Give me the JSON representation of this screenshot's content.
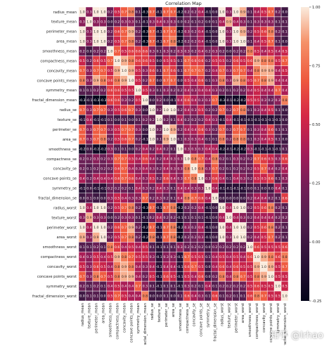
{
  "chart_data": {
    "type": "heatmap",
    "title": "Correlation Map",
    "labels": [
      "radius_mean",
      "texture_mean",
      "perimeter_mean",
      "area_mean",
      "smoothness_mean",
      "compactness_mean",
      "concavity_mean",
      "concave points_mean",
      "symmetry_mean",
      "fractal_dimension_mean",
      "radius_se",
      "texture_se",
      "perimeter_se",
      "area_se",
      "smoothness_se",
      "compactness_se",
      "concavity_se",
      "concave points_se",
      "symmetry_se",
      "fractal_dimension_se",
      "radius_worst",
      "texture_worst",
      "perimeter_worst",
      "area_worst",
      "smoothness_worst",
      "compactness_worst",
      "concavity_worst",
      "concave points_worst",
      "symmetry_worst",
      "fractal_dimension_worst"
    ],
    "matrix": [
      [
        1.0,
        0.3,
        1.0,
        1.0,
        0.2,
        0.5,
        0.7,
        0.8,
        0.1,
        -0.3,
        0.7,
        -0.1,
        0.7,
        0.7,
        -0.2,
        0.2,
        0.2,
        0.4,
        -0.1,
        -0.0,
        1.0,
        0.3,
        1.0,
        0.9,
        0.1,
        0.4,
        0.5,
        0.7,
        0.2,
        0.0
      ],
      [
        0.3,
        1.0,
        0.3,
        0.3,
        -0.0,
        0.2,
        0.3,
        0.3,
        0.1,
        -0.1,
        0.3,
        0.4,
        0.3,
        0.3,
        0.0,
        0.2,
        0.1,
        0.2,
        0.0,
        0.1,
        0.4,
        0.9,
        0.4,
        0.3,
        0.1,
        0.3,
        0.3,
        0.3,
        0.1,
        0.1
      ],
      [
        1.0,
        0.3,
        1.0,
        1.0,
        0.2,
        0.6,
        0.7,
        0.9,
        0.2,
        -0.3,
        0.7,
        -0.1,
        0.7,
        0.7,
        -0.2,
        0.3,
        0.2,
        0.4,
        -0.1,
        -0.0,
        1.0,
        0.3,
        1.0,
        0.9,
        0.2,
        0.5,
        0.6,
        0.8,
        0.2,
        0.1
      ],
      [
        1.0,
        0.3,
        1.0,
        1.0,
        0.2,
        0.5,
        0.7,
        0.8,
        0.2,
        -0.3,
        0.7,
        -0.1,
        0.7,
        0.8,
        -0.2,
        0.2,
        0.2,
        0.4,
        -0.1,
        -0.0,
        1.0,
        0.3,
        1.0,
        1.0,
        0.1,
        0.4,
        0.5,
        0.7,
        0.1,
        0.0
      ],
      [
        0.2,
        -0.0,
        0.2,
        0.2,
        1.0,
        0.7,
        0.5,
        0.6,
        0.6,
        0.6,
        0.3,
        0.1,
        0.3,
        0.2,
        0.3,
        0.3,
        0.2,
        0.4,
        0.2,
        0.3,
        0.2,
        0.0,
        0.2,
        0.2,
        0.8,
        0.5,
        0.4,
        0.5,
        0.4,
        0.5
      ],
      [
        0.5,
        0.2,
        0.6,
        0.5,
        0.7,
        1.0,
        0.9,
        0.8,
        0.6,
        0.6,
        0.5,
        0.0,
        0.5,
        0.5,
        0.1,
        0.7,
        0.6,
        0.6,
        0.2,
        0.5,
        0.5,
        0.2,
        0.6,
        0.5,
        0.6,
        0.9,
        0.8,
        0.8,
        0.5,
        0.7
      ],
      [
        0.7,
        0.3,
        0.7,
        0.7,
        0.5,
        0.9,
        1.0,
        0.9,
        0.5,
        0.3,
        0.6,
        0.1,
        0.7,
        0.6,
        0.1,
        0.7,
        0.7,
        0.7,
        0.2,
        0.4,
        0.7,
        0.3,
        0.7,
        0.7,
        0.4,
        0.8,
        0.9,
        0.9,
        0.4,
        0.5
      ],
      [
        0.8,
        0.3,
        0.9,
        0.8,
        0.6,
        0.8,
        0.9,
        1.0,
        0.5,
        0.2,
        0.7,
        0.0,
        0.7,
        0.7,
        0.0,
        0.5,
        0.4,
        0.6,
        0.1,
        0.3,
        0.8,
        0.3,
        0.9,
        0.8,
        0.5,
        0.7,
        0.8,
        0.9,
        0.4,
        0.4
      ],
      [
        0.1,
        0.1,
        0.2,
        0.2,
        0.6,
        0.6,
        0.5,
        0.5,
        1.0,
        0.5,
        0.3,
        0.1,
        0.3,
        0.2,
        0.2,
        0.4,
        0.3,
        0.4,
        0.4,
        0.3,
        0.2,
        0.1,
        0.2,
        0.2,
        0.4,
        0.5,
        0.4,
        0.4,
        0.7,
        0.4
      ],
      [
        -0.3,
        -0.1,
        -0.3,
        -0.3,
        0.6,
        0.6,
        0.3,
        0.2,
        0.5,
        1.0,
        0.0,
        0.2,
        0.0,
        -0.1,
        0.4,
        0.6,
        0.4,
        0.3,
        0.3,
        0.7,
        -0.3,
        -0.1,
        -0.2,
        -0.2,
        0.5,
        0.5,
        0.3,
        0.2,
        0.3,
        0.8
      ],
      [
        0.7,
        0.3,
        0.7,
        0.7,
        0.3,
        0.5,
        0.6,
        0.7,
        0.3,
        0.0,
        1.0,
        0.2,
        1.0,
        1.0,
        0.2,
        0.4,
        0.3,
        0.5,
        0.2,
        0.2,
        0.7,
        0.2,
        0.7,
        0.8,
        0.1,
        0.3,
        0.4,
        0.5,
        0.1,
        0.0
      ],
      [
        -0.1,
        0.4,
        -0.1,
        -0.1,
        0.1,
        0.0,
        0.1,
        0.0,
        0.1,
        0.2,
        0.2,
        1.0,
        0.2,
        0.1,
        0.4,
        0.2,
        0.2,
        0.2,
        0.4,
        0.3,
        -0.1,
        0.4,
        -0.1,
        -0.1,
        -0.1,
        -0.1,
        -0.1,
        -0.1,
        -0.1,
        -0.0
      ],
      [
        0.7,
        0.3,
        0.7,
        0.7,
        0.3,
        0.5,
        0.7,
        0.7,
        0.3,
        0.0,
        1.0,
        0.2,
        1.0,
        0.9,
        0.2,
        0.4,
        0.4,
        0.6,
        0.3,
        0.2,
        0.7,
        0.2,
        0.7,
        0.7,
        0.1,
        0.3,
        0.4,
        0.6,
        0.1,
        0.1
      ],
      [
        0.7,
        0.3,
        0.7,
        0.8,
        0.2,
        0.5,
        0.6,
        0.7,
        0.2,
        -0.1,
        1.0,
        0.1,
        0.9,
        1.0,
        0.1,
        0.3,
        0.3,
        0.4,
        0.1,
        0.1,
        0.8,
        0.2,
        0.8,
        0.8,
        0.1,
        0.3,
        0.4,
        0.5,
        0.1,
        0.0
      ],
      [
        -0.2,
        0.0,
        -0.2,
        -0.2,
        0.3,
        0.1,
        0.1,
        0.0,
        0.2,
        0.4,
        0.2,
        0.4,
        0.2,
        0.1,
        1.0,
        0.3,
        0.3,
        0.3,
        0.4,
        0.4,
        -0.2,
        -0.1,
        -0.2,
        -0.2,
        0.3,
        -0.1,
        -0.1,
        -0.1,
        -0.1,
        0.1
      ],
      [
        0.2,
        0.2,
        0.3,
        0.2,
        0.3,
        0.7,
        0.7,
        0.5,
        0.4,
        0.6,
        0.4,
        0.2,
        0.4,
        0.3,
        0.3,
        1.0,
        0.8,
        0.7,
        0.4,
        0.8,
        0.2,
        0.1,
        0.3,
        0.2,
        0.2,
        0.7,
        0.6,
        0.5,
        0.3,
        0.6
      ],
      [
        0.2,
        0.1,
        0.2,
        0.2,
        0.2,
        0.6,
        0.7,
        0.4,
        0.3,
        0.4,
        0.3,
        0.2,
        0.4,
        0.3,
        0.3,
        0.8,
        1.0,
        0.8,
        0.3,
        0.7,
        0.2,
        0.1,
        0.2,
        0.2,
        0.2,
        0.5,
        0.7,
        0.4,
        0.2,
        0.4
      ],
      [
        0.4,
        0.2,
        0.4,
        0.4,
        0.4,
        0.6,
        0.7,
        0.6,
        0.4,
        0.3,
        0.5,
        0.2,
        0.6,
        0.4,
        0.3,
        0.7,
        0.8,
        1.0,
        0.3,
        0.6,
        0.4,
        0.1,
        0.4,
        0.3,
        0.2,
        0.5,
        0.5,
        0.6,
        0.1,
        0.3
      ],
      [
        -0.1,
        0.0,
        -0.1,
        -0.1,
        0.2,
        0.2,
        0.2,
        0.1,
        0.4,
        0.3,
        0.2,
        0.4,
        0.3,
        0.1,
        0.4,
        0.4,
        0.3,
        0.3,
        1.0,
        0.4,
        -0.1,
        -0.1,
        -0.1,
        -0.1,
        -0.0,
        0.1,
        0.0,
        -0.0,
        0.4,
        0.1
      ],
      [
        -0.0,
        0.1,
        -0.0,
        -0.0,
        0.3,
        0.5,
        0.4,
        0.3,
        0.3,
        0.7,
        0.2,
        0.3,
        0.2,
        0.1,
        0.4,
        0.8,
        0.7,
        0.6,
        0.4,
        1.0,
        -0.0,
        -0.0,
        -0.0,
        -0.0,
        0.2,
        0.4,
        0.4,
        0.2,
        0.1,
        0.6
      ],
      [
        1.0,
        0.4,
        1.0,
        1.0,
        0.2,
        0.5,
        0.7,
        0.8,
        0.2,
        -0.3,
        0.7,
        -0.1,
        0.7,
        0.8,
        -0.2,
        0.2,
        0.2,
        0.4,
        -0.1,
        -0.0,
        1.0,
        0.4,
        1.0,
        1.0,
        0.2,
        0.5,
        0.6,
        0.8,
        0.2,
        0.1
      ],
      [
        0.3,
        0.9,
        0.3,
        0.3,
        0.0,
        0.2,
        0.3,
        0.3,
        0.1,
        -0.1,
        0.2,
        0.4,
        0.2,
        0.2,
        -0.1,
        0.1,
        0.1,
        0.1,
        -0.1,
        -0.0,
        0.4,
        1.0,
        0.4,
        0.3,
        0.2,
        0.4,
        0.4,
        0.4,
        0.2,
        0.2
      ],
      [
        1.0,
        0.4,
        1.0,
        1.0,
        0.2,
        0.6,
        0.7,
        0.9,
        0.2,
        -0.2,
        0.7,
        -0.1,
        0.7,
        0.8,
        -0.2,
        0.3,
        0.2,
        0.4,
        -0.1,
        -0.0,
        1.0,
        0.4,
        1.0,
        1.0,
        0.2,
        0.5,
        0.6,
        0.8,
        0.2,
        0.1
      ],
      [
        0.9,
        0.3,
        0.9,
        1.0,
        0.2,
        0.5,
        0.7,
        0.8,
        0.2,
        -0.2,
        0.8,
        -0.1,
        0.7,
        0.8,
        -0.2,
        0.2,
        0.2,
        0.3,
        -0.1,
        -0.0,
        1.0,
        0.3,
        1.0,
        1.0,
        0.2,
        0.4,
        0.5,
        0.7,
        0.2,
        0.1
      ],
      [
        0.1,
        0.1,
        0.2,
        0.1,
        0.8,
        0.6,
        0.4,
        0.5,
        0.4,
        0.5,
        0.1,
        -0.1,
        0.1,
        0.1,
        0.3,
        0.2,
        0.2,
        0.2,
        -0.0,
        0.2,
        0.2,
        0.2,
        0.2,
        0.2,
        1.0,
        0.6,
        0.5,
        0.5,
        0.5,
        0.6
      ],
      [
        0.4,
        0.3,
        0.5,
        0.4,
        0.5,
        0.9,
        0.8,
        0.7,
        0.5,
        0.5,
        0.3,
        -0.1,
        0.3,
        0.3,
        -0.1,
        0.7,
        0.5,
        0.5,
        0.1,
        0.4,
        0.5,
        0.4,
        0.5,
        0.4,
        0.6,
        1.0,
        0.9,
        0.8,
        0.6,
        0.8
      ],
      [
        0.5,
        0.3,
        0.6,
        0.5,
        0.4,
        0.8,
        0.9,
        0.8,
        0.4,
        0.3,
        0.4,
        -0.1,
        0.4,
        0.4,
        -0.1,
        0.6,
        0.7,
        0.5,
        0.0,
        0.4,
        0.6,
        0.4,
        0.6,
        0.5,
        0.5,
        0.9,
        1.0,
        0.9,
        0.5,
        0.7
      ],
      [
        0.7,
        0.3,
        0.8,
        0.7,
        0.5,
        0.8,
        0.9,
        0.9,
        0.4,
        0.2,
        0.5,
        -0.1,
        0.6,
        0.5,
        -0.1,
        0.5,
        0.4,
        0.6,
        -0.0,
        0.2,
        0.8,
        0.4,
        0.8,
        0.7,
        0.5,
        0.8,
        0.9,
        1.0,
        0.5,
        0.5
      ],
      [
        0.2,
        0.1,
        0.2,
        0.1,
        0.4,
        0.5,
        0.4,
        0.4,
        0.7,
        0.3,
        0.1,
        -0.1,
        0.1,
        0.1,
        -0.1,
        0.3,
        0.2,
        0.1,
        0.4,
        0.1,
        0.2,
        0.2,
        0.2,
        0.2,
        0.5,
        0.6,
        0.5,
        0.5,
        1.0,
        0.5
      ],
      [
        0.0,
        0.1,
        0.1,
        0.0,
        0.5,
        0.7,
        0.5,
        0.4,
        0.4,
        0.8,
        0.0,
        -0.0,
        0.1,
        0.0,
        0.1,
        0.6,
        0.4,
        0.3,
        0.1,
        0.6,
        0.1,
        0.2,
        0.1,
        0.1,
        0.6,
        0.8,
        0.7,
        0.5,
        0.5,
        1.0
      ]
    ],
    "colorbar": {
      "min": -0.25,
      "max": 1.0,
      "ticks": [
        "1.00",
        "0.75",
        "0.50",
        "0.25",
        "0.00",
        "-0.25"
      ]
    },
    "annotated": true,
    "annotation_format": "0.1",
    "grid": true
  },
  "watermark": "知乎 @lrhao"
}
